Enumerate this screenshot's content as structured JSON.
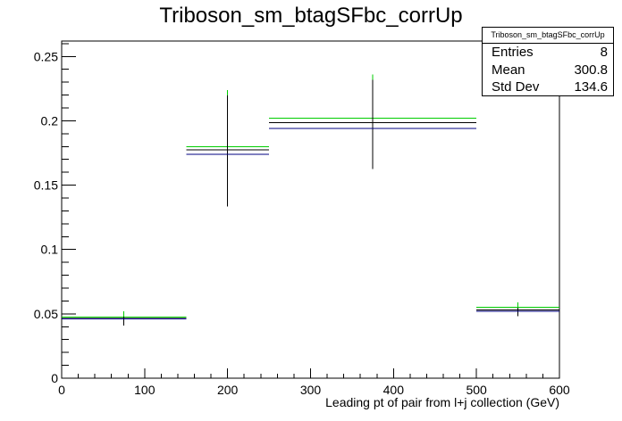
{
  "chart_data": {
    "type": "histogram",
    "title": "Triboson_sm_btagSFbc_corrUp",
    "xlabel": "Leading pt of pair from l+j collection (GeV)",
    "ylabel": "",
    "xlim": [
      0,
      600
    ],
    "ylim": [
      0,
      0.262
    ],
    "x_major_ticks": [
      0,
      100,
      200,
      300,
      400,
      500,
      600
    ],
    "y_major_ticks": [
      0,
      0.05,
      0.1,
      0.15,
      0.2,
      0.25
    ],
    "x_tick_labels": [
      "0",
      "100",
      "200",
      "300",
      "400",
      "500",
      "600"
    ],
    "y_tick_labels": [
      "0",
      "0.05",
      "0.1",
      "0.15",
      "0.2",
      "0.25"
    ],
    "grid": false,
    "series": [
      {
        "color": "#00cc00",
        "bins": [
          {
            "x_low": 0,
            "x_high": 150,
            "y": 0.0475
          },
          {
            "x_low": 150,
            "x_high": 250,
            "y": 0.18
          },
          {
            "x_low": 250,
            "x_high": 500,
            "y": 0.202
          },
          {
            "x_low": 500,
            "x_high": 600,
            "y": 0.055
          }
        ]
      },
      {
        "color": "#000000",
        "bins": [
          {
            "x_low": 0,
            "x_high": 150,
            "y": 0.0465,
            "err": 0.0055
          },
          {
            "x_low": 150,
            "x_high": 250,
            "y": 0.1775,
            "err": 0.044
          },
          {
            "x_low": 250,
            "x_high": 500,
            "y": 0.1985,
            "err": 0.036
          },
          {
            "x_low": 500,
            "x_high": 600,
            "y": 0.053,
            "err": 0.005
          }
        ]
      },
      {
        "color": "#000080",
        "bins": [
          {
            "x_low": 0,
            "x_high": 150,
            "y": 0.046
          },
          {
            "x_low": 150,
            "x_high": 250,
            "y": 0.174
          },
          {
            "x_low": 250,
            "x_high": 500,
            "y": 0.194
          },
          {
            "x_low": 500,
            "x_high": 600,
            "y": 0.052
          }
        ]
      }
    ],
    "error_marker_tops": [
      {
        "x": 75,
        "y": 0.052,
        "color": "#00cc00"
      },
      {
        "x": 200,
        "y": 0.224,
        "color": "#00cc00"
      },
      {
        "x": 375,
        "y": 0.236,
        "color": "#00cc00"
      },
      {
        "x": 550,
        "y": 0.059,
        "color": "#00cc00"
      }
    ]
  },
  "stats_box": {
    "name": "Triboson_sm_btagSFbc_corrUp",
    "entries_label": "Entries",
    "entries_value": "8",
    "mean_label": "Mean",
    "mean_value": "300.8",
    "stddev_label": "Std Dev",
    "stddev_value": "134.6"
  }
}
